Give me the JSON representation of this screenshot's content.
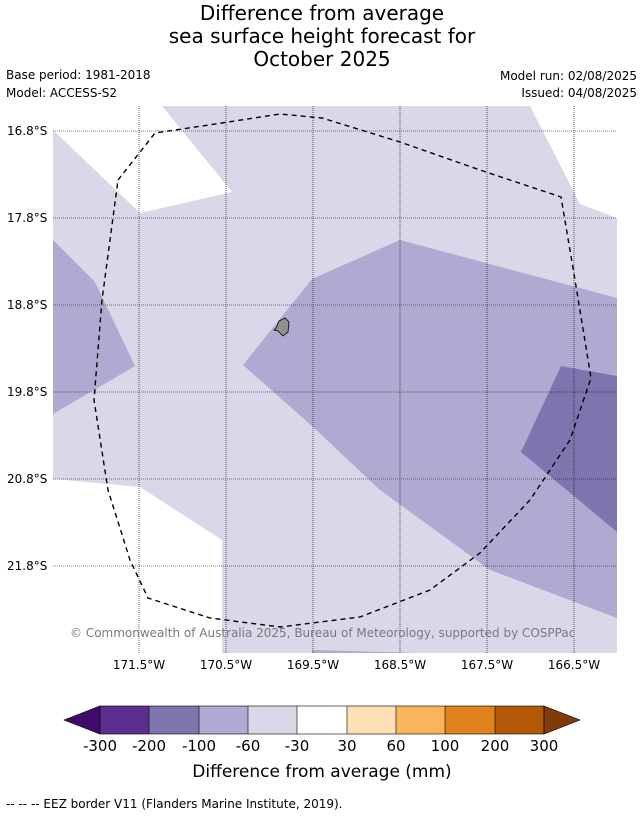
{
  "title": {
    "line1": "Difference from average",
    "line2": "sea surface height forecast for",
    "line3": "October 2025"
  },
  "meta": {
    "base_period": "Base period: 1981-2018",
    "model": "Model: ACCESS-S2",
    "model_run": "Model run: 02/08/2025",
    "issued": "Issued: 04/08/2025"
  },
  "map": {
    "lat_labels": [
      "16.8°S",
      "17.8°S",
      "18.8°S",
      "19.8°S",
      "20.8°S",
      "21.8°S"
    ],
    "lon_labels": [
      "171.5°W",
      "170.5°W",
      "169.5°W",
      "168.5°W",
      "167.5°W",
      "166.5°W"
    ],
    "copyright": "© Commonwealth of Australia 2025, Bureau of Meteorology, supported by COSPPac",
    "colors": {
      "cat_-30_-60": "#d8d8e8",
      "cat_-60_-100": "#b0aad2",
      "cat_-100_-200": "#8074ae",
      "cat_-30_30": "#ffffff",
      "land": "#909090",
      "grid": "#000000"
    }
  },
  "colorbar": {
    "ticks": [
      "-300",
      "-200",
      "-100",
      "-60",
      "-30",
      "30",
      "60",
      "100",
      "200",
      "300"
    ],
    "colors": [
      "#3f0a68",
      "#5a2d8f",
      "#8074ae",
      "#b0aad2",
      "#d8d8e8",
      "#ffffff",
      "#fde0b8",
      "#fbb45e",
      "#e0821a",
      "#b35806",
      "#7f3b08"
    ],
    "label": "Difference from average (mm)"
  },
  "footnote": "--  --  -- EEZ border V11 (Flanders Marine Institute, 2019)."
}
